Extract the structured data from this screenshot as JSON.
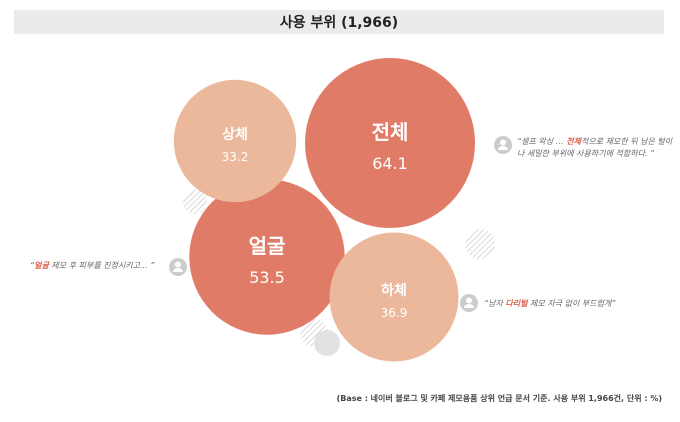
{
  "chart_data": {
    "type": "bubble",
    "title": "사용 부위 (1,966)",
    "unit": "%",
    "categories": [
      "전체",
      "얼굴",
      "하체",
      "상체"
    ],
    "values": [
      64.1,
      53.5,
      36.9,
      33.2
    ],
    "colors": {
      "전체": "#e07b67",
      "얼굴": "#e07b67",
      "하체": "#ecb89c",
      "상체": "#ecb89c"
    }
  },
  "quotes": [
    {
      "pre": "“셀프 왁싱 … ",
      "hl": "전체",
      "post": "적으로 제모한 뒤 남은 털이나 세밀한 부위에 사용하기에 적합하다. ”"
    },
    {
      "pre": "“",
      "hl": "얼굴",
      "post": " 제모 후 피부를 진정시키고... ”"
    },
    {
      "pre": "“남자 ",
      "hl": "다리털",
      "post": " 제모 자극 없이 부드럽게”"
    }
  ],
  "footnote": "(Base : 네이버 블로그 및 카페 제모용품 상위 언급 문서 기준. 사용 부위 1,966건, 단위 : %)",
  "icons": [
    "person-icon",
    "person-icon",
    "person-icon"
  ]
}
